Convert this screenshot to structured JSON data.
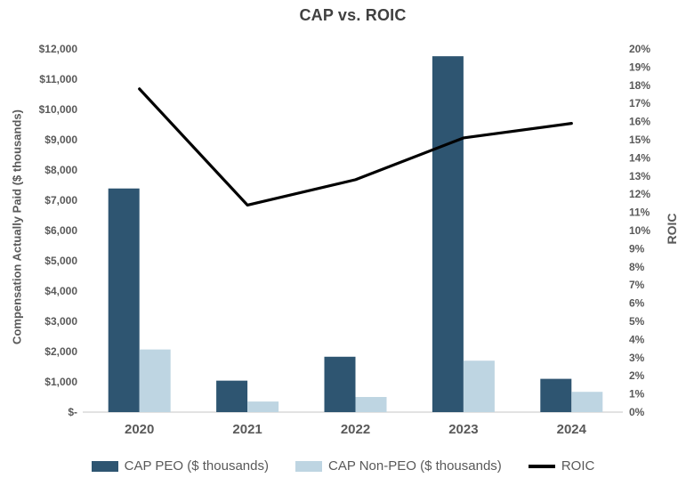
{
  "title": "CAP vs. ROIC",
  "chart_data": {
    "type": "combo-bar-line",
    "categories": [
      "2020",
      "2021",
      "2022",
      "2023",
      "2024"
    ],
    "series": [
      {
        "name": "CAP PEO ($ thousands)",
        "type": "bar",
        "axis": "left",
        "color": "#2E5571",
        "values": [
          7390,
          1040,
          1830,
          11760,
          1100
        ]
      },
      {
        "name": "CAP Non-PEO ($ thousands)",
        "type": "bar",
        "axis": "left",
        "color": "#BED5E2",
        "values": [
          2070,
          350,
          500,
          1700,
          670
        ]
      },
      {
        "name": "ROIC",
        "type": "line",
        "axis": "right",
        "color": "#000000",
        "values_pct": [
          17.8,
          11.4,
          12.8,
          15.1,
          15.9
        ]
      }
    ],
    "left_axis": {
      "label": "Compensation Actually Paid ($ thousands)",
      "min": 0,
      "max": 12000,
      "ticks": [
        "$12,000",
        "$11,000",
        "$10,000",
        "$9,000",
        "$8,000",
        "$7,000",
        "$6,000",
        "$5,000",
        "$4,000",
        "$3,000",
        "$2,000",
        "$1,000",
        "$-"
      ]
    },
    "right_axis": {
      "label": "ROIC",
      "min_pct": 0,
      "max_pct": 20,
      "ticks": [
        "20%",
        "19%",
        "18%",
        "17%",
        "16%",
        "15%",
        "14%",
        "13%",
        "12%",
        "11%",
        "10%",
        "9%",
        "8%",
        "7%",
        "6%",
        "5%",
        "4%",
        "3%",
        "2%",
        "1%",
        "0%"
      ]
    },
    "legend_position": "bottom",
    "gridlines": "off"
  },
  "colors": {
    "bar_peo": "#2E5571",
    "bar_non_peo": "#BED5E2",
    "roic_line": "#000000",
    "axis_text": "#595959",
    "title_text": "#404040",
    "axis_line": "#D9D9D9",
    "background": "#FFFFFF"
  }
}
